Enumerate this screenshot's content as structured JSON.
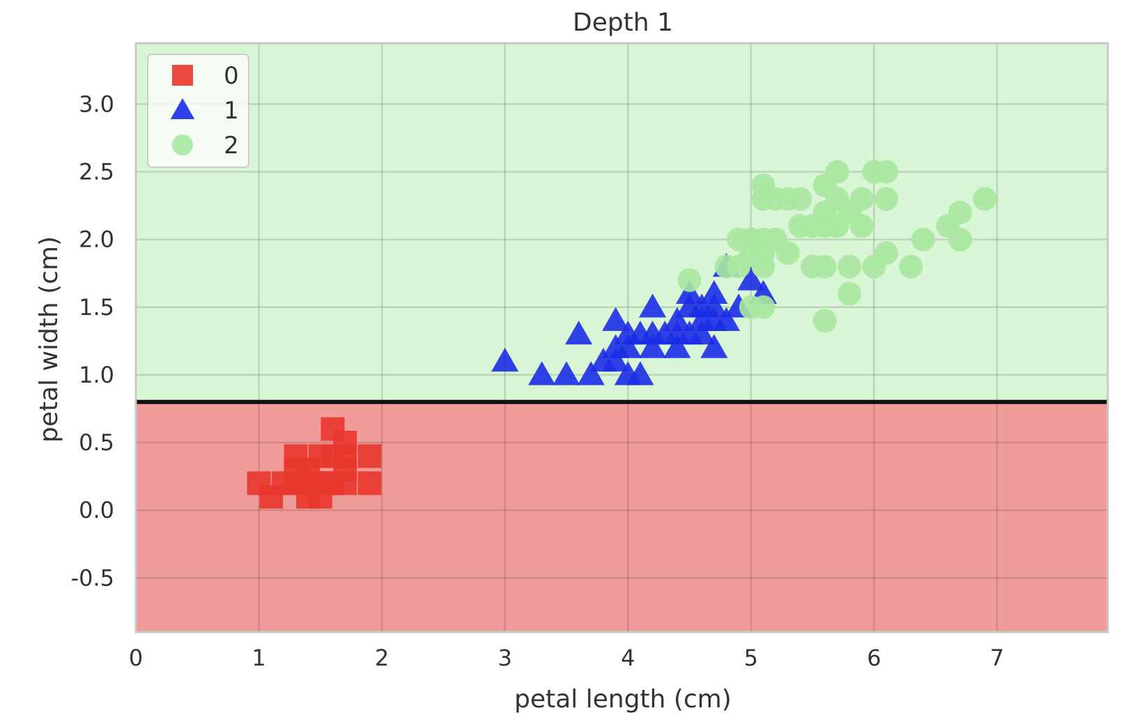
{
  "chart_data": {
    "type": "scatter",
    "title": "Depth 1",
    "xlabel": "petal length (cm)",
    "ylabel": "petal width (cm)",
    "xlim": [
      0,
      7.9
    ],
    "ylim": [
      -0.9,
      3.45
    ],
    "x_ticks": [
      0,
      1,
      2,
      3,
      4,
      5,
      6,
      7
    ],
    "y_ticks": [
      -0.5,
      0.0,
      0.5,
      1.0,
      1.5,
      2.0,
      2.5,
      3.0
    ],
    "x_tick_labels": [
      "0",
      "1",
      "2",
      "3",
      "4",
      "5",
      "6",
      "7"
    ],
    "y_tick_labels": [
      "-0.5",
      "0.0",
      "0.5",
      "1.0",
      "1.5",
      "2.0",
      "2.5",
      "3.0"
    ],
    "grid": true,
    "legend_position": "top-left",
    "decision_boundary": {
      "axis": "y",
      "value": 0.8
    },
    "regions": [
      {
        "class": "0",
        "y_range": [
          -0.9,
          0.8
        ],
        "color": "#f09c9a"
      },
      {
        "class": "2",
        "y_range": [
          0.8,
          3.45
        ],
        "color": "#d8f5d5"
      }
    ],
    "series": [
      {
        "name": "0",
        "marker": "square",
        "color": "#e8372c",
        "points": [
          [
            1.0,
            0.2
          ],
          [
            1.1,
            0.1
          ],
          [
            1.2,
            0.2
          ],
          [
            1.3,
            0.2
          ],
          [
            1.3,
            0.4
          ],
          [
            1.3,
            0.3
          ],
          [
            1.4,
            0.2
          ],
          [
            1.4,
            0.1
          ],
          [
            1.4,
            0.3
          ],
          [
            1.4,
            0.2
          ],
          [
            1.5,
            0.2
          ],
          [
            1.5,
            0.1
          ],
          [
            1.5,
            0.4
          ],
          [
            1.5,
            0.2
          ],
          [
            1.6,
            0.2
          ],
          [
            1.6,
            0.6
          ],
          [
            1.6,
            0.4
          ],
          [
            1.6,
            0.2
          ],
          [
            1.7,
            0.4
          ],
          [
            1.7,
            0.3
          ],
          [
            1.7,
            0.5
          ],
          [
            1.7,
            0.2
          ],
          [
            1.9,
            0.2
          ],
          [
            1.9,
            0.4
          ]
        ]
      },
      {
        "name": "1",
        "marker": "triangle",
        "color": "#1b2ee6",
        "points": [
          [
            3.0,
            1.1
          ],
          [
            3.3,
            1.0
          ],
          [
            3.5,
            1.0
          ],
          [
            3.6,
            1.3
          ],
          [
            3.7,
            1.0
          ],
          [
            3.8,
            1.1
          ],
          [
            3.9,
            1.1
          ],
          [
            3.9,
            1.2
          ],
          [
            3.9,
            1.4
          ],
          [
            4.0,
            1.0
          ],
          [
            4.0,
            1.2
          ],
          [
            4.0,
            1.3
          ],
          [
            4.1,
            1.0
          ],
          [
            4.1,
            1.3
          ],
          [
            4.2,
            1.2
          ],
          [
            4.2,
            1.3
          ],
          [
            4.2,
            1.5
          ],
          [
            4.3,
            1.3
          ],
          [
            4.4,
            1.2
          ],
          [
            4.4,
            1.3
          ],
          [
            4.4,
            1.4
          ],
          [
            4.5,
            1.3
          ],
          [
            4.5,
            1.5
          ],
          [
            4.5,
            1.6
          ],
          [
            4.6,
            1.3
          ],
          [
            4.6,
            1.4
          ],
          [
            4.6,
            1.5
          ],
          [
            4.7,
            1.2
          ],
          [
            4.7,
            1.4
          ],
          [
            4.7,
            1.5
          ],
          [
            4.7,
            1.6
          ],
          [
            4.8,
            1.4
          ],
          [
            4.8,
            1.8
          ],
          [
            4.9,
            1.5
          ],
          [
            5.0,
            1.7
          ],
          [
            5.1,
            1.6
          ]
        ]
      },
      {
        "name": "2",
        "marker": "circle",
        "color": "#a9e8a0",
        "points": [
          [
            4.5,
            1.7
          ],
          [
            4.8,
            1.8
          ],
          [
            4.9,
            1.8
          ],
          [
            5.0,
            1.5
          ],
          [
            5.0,
            2.0
          ],
          [
            5.0,
            1.9
          ],
          [
            4.9,
            2.0
          ],
          [
            5.1,
            1.5
          ],
          [
            5.1,
            1.8
          ],
          [
            5.1,
            1.9
          ],
          [
            5.1,
            2.0
          ],
          [
            5.1,
            2.3
          ],
          [
            5.1,
            2.4
          ],
          [
            5.2,
            2.0
          ],
          [
            5.2,
            2.3
          ],
          [
            5.3,
            1.9
          ],
          [
            5.3,
            2.3
          ],
          [
            5.4,
            2.1
          ],
          [
            5.4,
            2.3
          ],
          [
            5.5,
            1.8
          ],
          [
            5.5,
            2.1
          ],
          [
            5.6,
            1.4
          ],
          [
            5.6,
            1.8
          ],
          [
            5.6,
            2.1
          ],
          [
            5.6,
            2.2
          ],
          [
            5.6,
            2.4
          ],
          [
            5.7,
            2.1
          ],
          [
            5.7,
            2.3
          ],
          [
            5.7,
            2.5
          ],
          [
            5.8,
            1.6
          ],
          [
            5.8,
            1.8
          ],
          [
            5.8,
            2.2
          ],
          [
            5.9,
            2.1
          ],
          [
            5.9,
            2.3
          ],
          [
            6.0,
            1.8
          ],
          [
            6.0,
            2.5
          ],
          [
            6.1,
            1.9
          ],
          [
            6.1,
            2.3
          ],
          [
            6.1,
            2.5
          ],
          [
            6.3,
            1.8
          ],
          [
            6.4,
            2.0
          ],
          [
            6.6,
            2.1
          ],
          [
            6.7,
            2.0
          ],
          [
            6.7,
            2.2
          ],
          [
            6.9,
            2.3
          ]
        ]
      }
    ]
  }
}
